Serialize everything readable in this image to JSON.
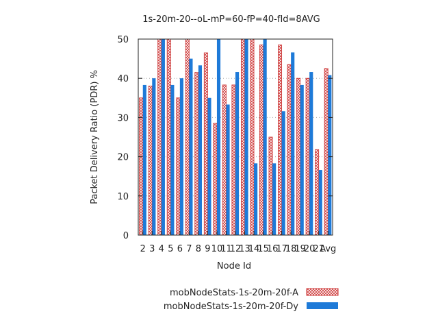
{
  "chart_data": {
    "type": "bar",
    "title": "1s-20m-20--oL-mP=60-fP=40-fId=8AVG",
    "xlabel": "Node Id",
    "ylabel": "Packet Delivery Ratio (PDR) %",
    "ylim": [
      0,
      50
    ],
    "yticks": [
      0,
      10,
      20,
      30,
      40,
      50
    ],
    "grid": true,
    "legend_position": "bottom-right",
    "categories": [
      "2",
      "3",
      "4",
      "5",
      "6",
      "7",
      "8",
      "9",
      "10",
      "11",
      "12",
      "13",
      "14",
      "15",
      "16",
      "17",
      "18",
      "19",
      "20",
      "21",
      "Avg"
    ],
    "series": [
      {
        "name": "mobNodeStats-1s-20m-20f-A",
        "color": "#cc3333",
        "pattern": "crosshatch",
        "values": [
          35,
          38,
          50,
          50,
          35,
          50,
          41.5,
          46.5,
          28.5,
          38.3,
          38.3,
          50,
          50,
          48.5,
          25,
          48.5,
          43.5,
          40,
          40,
          21.8,
          42.5
        ]
      },
      {
        "name": "mobNodeStats-1s-20m-20f-Dy",
        "color": "#1e7ad8",
        "pattern": "solid",
        "values": [
          38.3,
          40,
          50,
          38.3,
          40,
          45,
          43.3,
          35,
          50,
          33.3,
          41.6,
          50,
          18.3,
          50,
          18.3,
          31.6,
          46.6,
          38.3,
          41.6,
          16.6,
          40.8
        ]
      }
    ]
  }
}
